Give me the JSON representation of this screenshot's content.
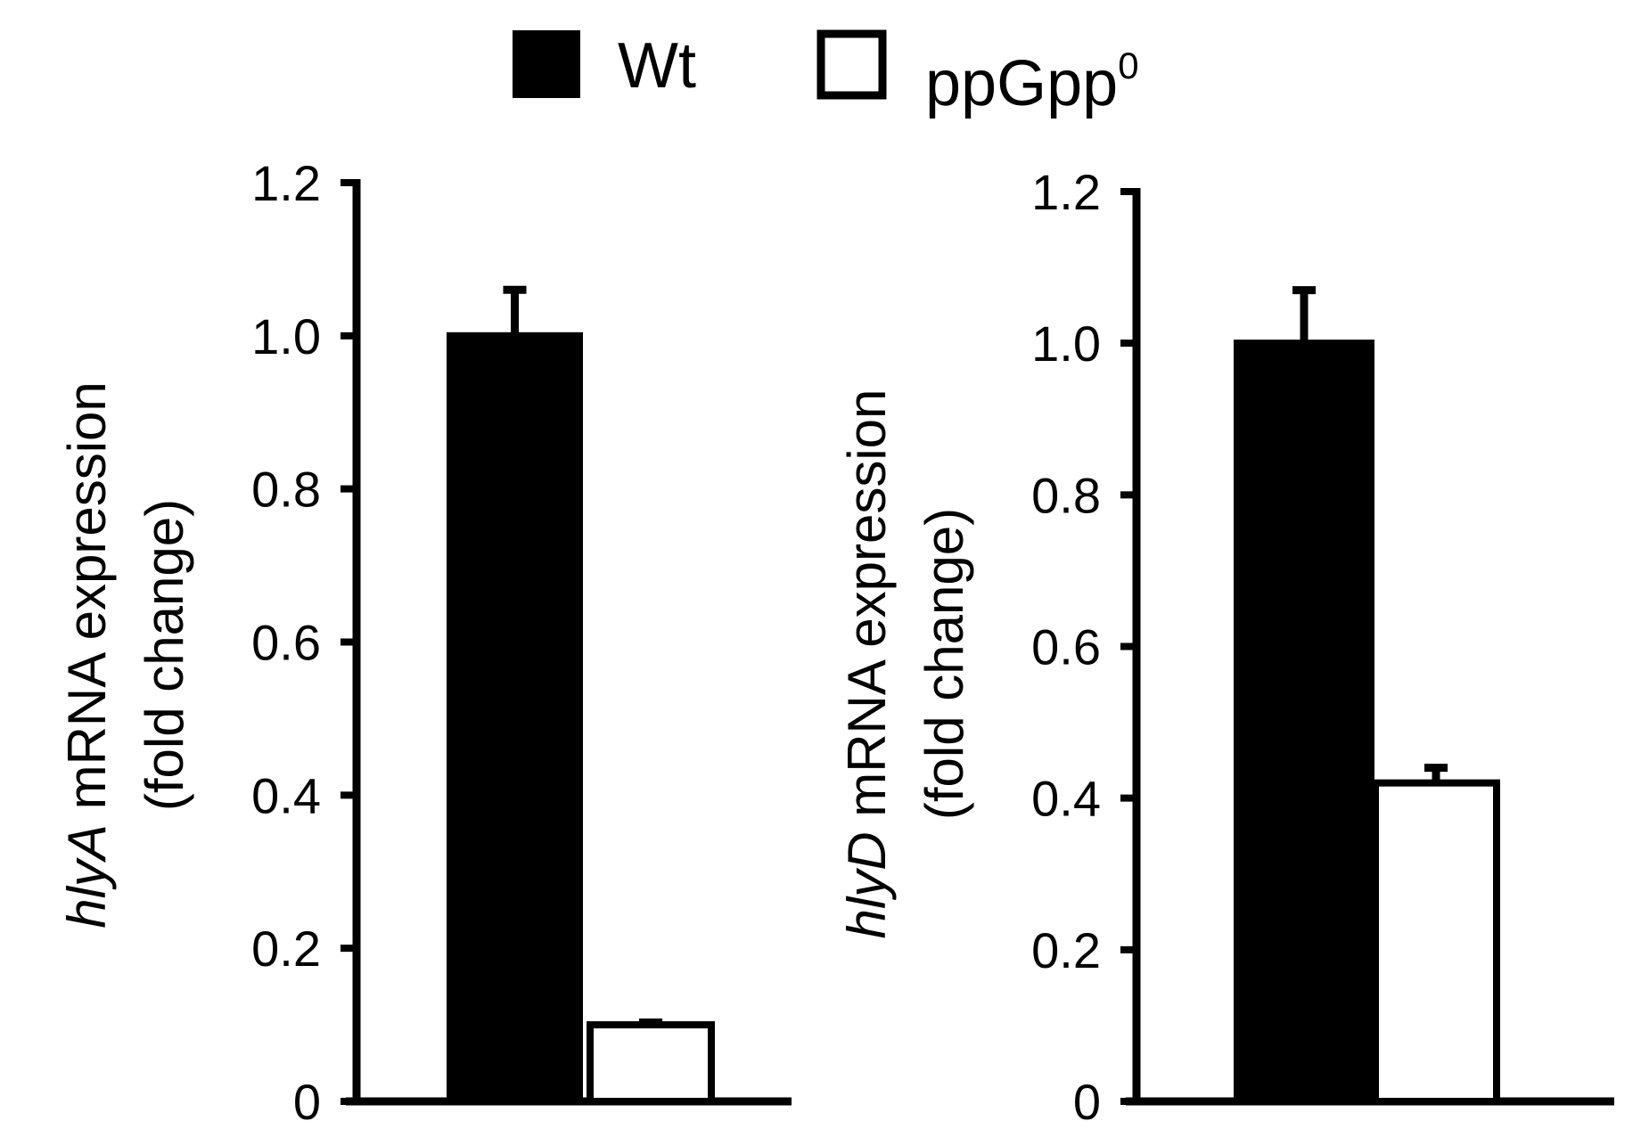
{
  "legend": [
    {
      "label": "Wt",
      "superscript": "",
      "fill": "#000000"
    },
    {
      "label": "ppGpp",
      "superscript": "0",
      "fill": "#ffffff"
    }
  ],
  "colors": {
    "axis": "#000000",
    "wt_fill": "#000000",
    "mutant_fill": "#ffffff",
    "background": "#ffffff"
  },
  "chart_data": [
    {
      "type": "bar",
      "panel": "left",
      "gene": "hlyA",
      "ylabel_line1_rest": " mRNA expression",
      "ylabel_line2": "(fold change)",
      "categories": [
        "Wt",
        "ppGpp0"
      ],
      "series": [
        {
          "name": "Wt",
          "value": 1.0,
          "error": 0.06
        },
        {
          "name": "ppGpp0",
          "value": 0.1,
          "error": 0.003
        }
      ],
      "ylim": [
        0,
        1.2
      ],
      "yticks": [
        0,
        0.2,
        0.4,
        0.6,
        0.8,
        1.0,
        1.2
      ],
      "ytick_labels": [
        "0",
        "0.2",
        "0.4",
        "0.6",
        "0.8",
        "1.0",
        "1.2"
      ],
      "grid": false
    },
    {
      "type": "bar",
      "panel": "right",
      "gene": "hlyD",
      "ylabel_line1_rest": " mRNA expression",
      "ylabel_line2": "(fold change)",
      "categories": [
        "Wt",
        "ppGpp0"
      ],
      "series": [
        {
          "name": "Wt",
          "value": 1.0,
          "error": 0.07
        },
        {
          "name": "ppGpp0",
          "value": 0.42,
          "error": 0.02
        }
      ],
      "ylim": [
        0,
        1.2
      ],
      "yticks": [
        0,
        0.2,
        0.4,
        0.6,
        0.8,
        1.0,
        1.2
      ],
      "ytick_labels": [
        "0",
        "0.2",
        "0.4",
        "0.6",
        "0.8",
        "1.0",
        "1.2"
      ],
      "grid": false
    }
  ]
}
